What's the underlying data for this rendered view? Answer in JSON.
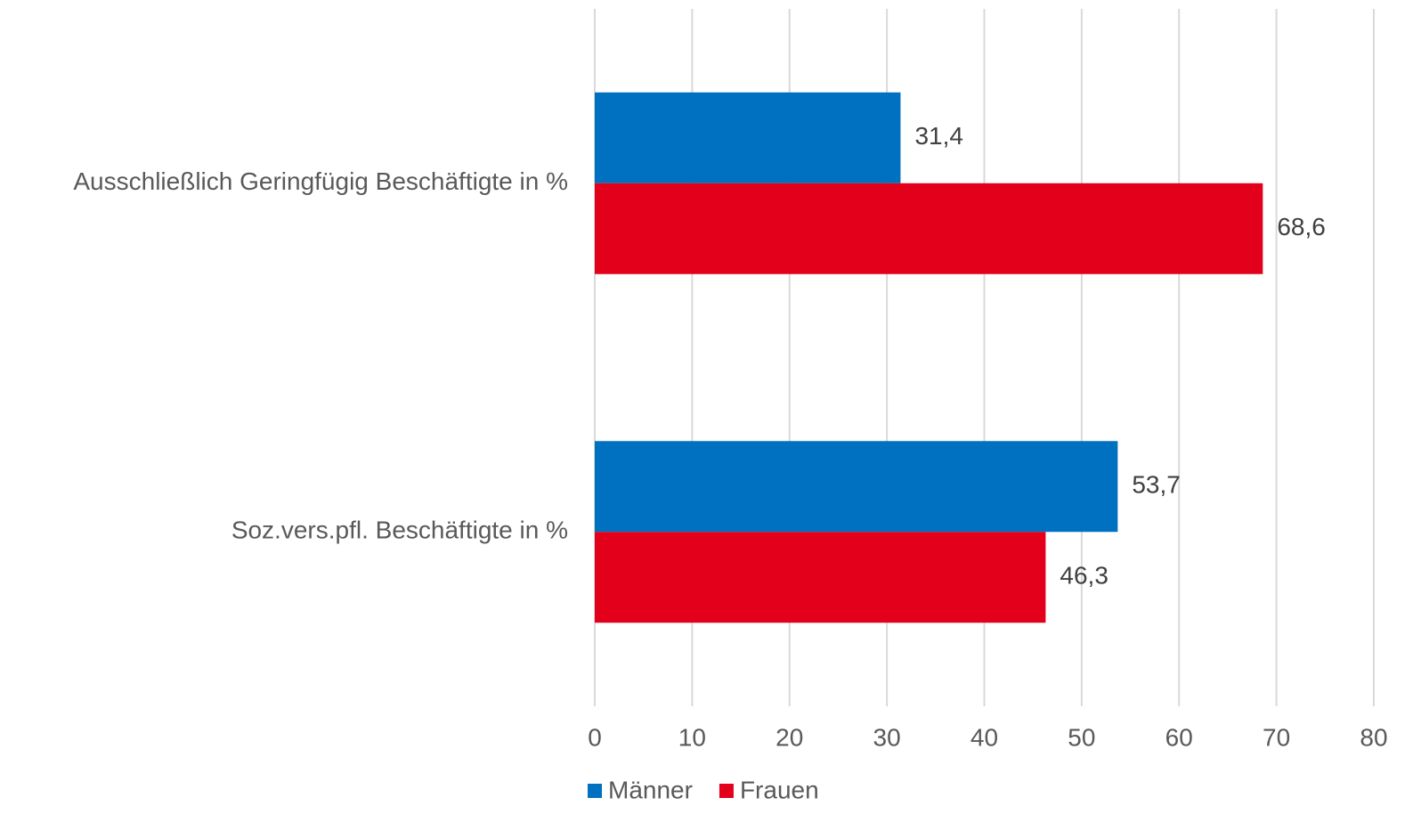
{
  "chart_data": {
    "type": "bar",
    "orientation": "horizontal",
    "categories": [
      "Ausschließlich Geringfügig Beschäftigte in %",
      "Soz.vers.pfl. Beschäftigte in %"
    ],
    "series": [
      {
        "name": "Männer",
        "color": "#0070c0",
        "values": [
          31.4,
          53.7
        ],
        "value_labels": [
          "31,4",
          "53,7"
        ]
      },
      {
        "name": "Frauen",
        "color": "#e2001a",
        "values": [
          68.6,
          46.3
        ],
        "value_labels": [
          "68,6",
          "46,3"
        ]
      }
    ],
    "xlim": [
      0,
      80
    ],
    "xticks": [
      0,
      10,
      20,
      30,
      40,
      50,
      60,
      70,
      80
    ],
    "grid": true,
    "legend": "bottom"
  }
}
